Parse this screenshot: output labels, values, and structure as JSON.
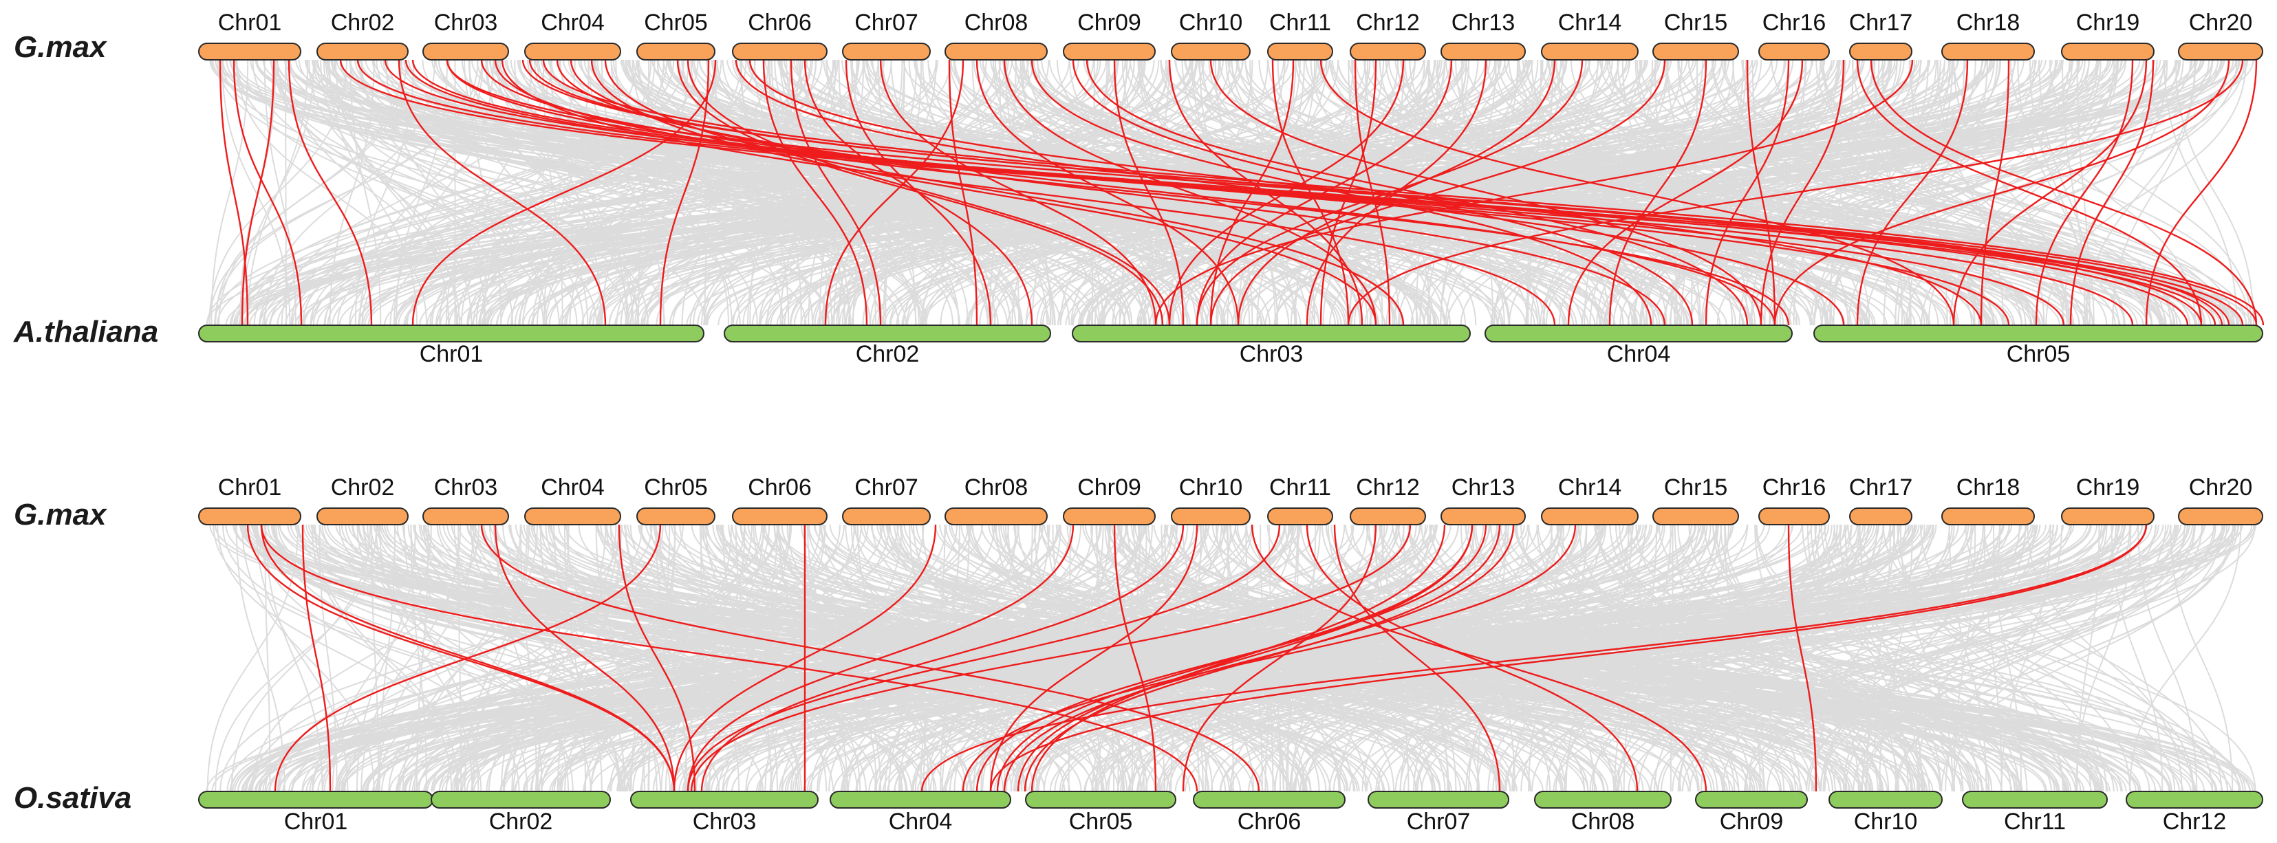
{
  "panels": [
    {
      "top_species": "G.max",
      "bottom_species": "A.thaliana",
      "top_chromosomes": [
        "Chr01",
        "Chr02",
        "Chr03",
        "Chr04",
        "Chr05",
        "Chr06",
        "Chr07",
        "Chr08",
        "Chr09",
        "Chr10",
        "Chr11",
        "Chr12",
        "Chr13",
        "Chr14",
        "Chr15",
        "Chr16",
        "Chr17",
        "Chr18",
        "Chr19",
        "Chr20"
      ],
      "bottom_chromosomes": [
        "Chr01",
        "Chr02",
        "Chr03",
        "Chr04",
        "Chr05"
      ]
    },
    {
      "top_species": "G.max",
      "bottom_species": "O.sativa",
      "top_chromosomes": [
        "Chr01",
        "Chr02",
        "Chr03",
        "Chr04",
        "Chr05",
        "Chr06",
        "Chr07",
        "Chr08",
        "Chr09",
        "Chr10",
        "Chr11",
        "Chr12",
        "Chr13",
        "Chr14",
        "Chr15",
        "Chr16",
        "Chr17",
        "Chr18",
        "Chr19",
        "Chr20"
      ],
      "bottom_chromosomes": [
        "Chr01",
        "Chr02",
        "Chr03",
        "Chr04",
        "Chr05",
        "Chr06",
        "Chr07",
        "Chr08",
        "Chr09",
        "Chr10",
        "Chr11",
        "Chr12"
      ]
    }
  ],
  "colors": {
    "top_chromosome": "#f9a35a",
    "bottom_chromosome": "#8fcc5e",
    "background_links": "#dcdcdc",
    "highlight_links": "#ee1c1c",
    "outline": "#2a2a2a"
  }
}
